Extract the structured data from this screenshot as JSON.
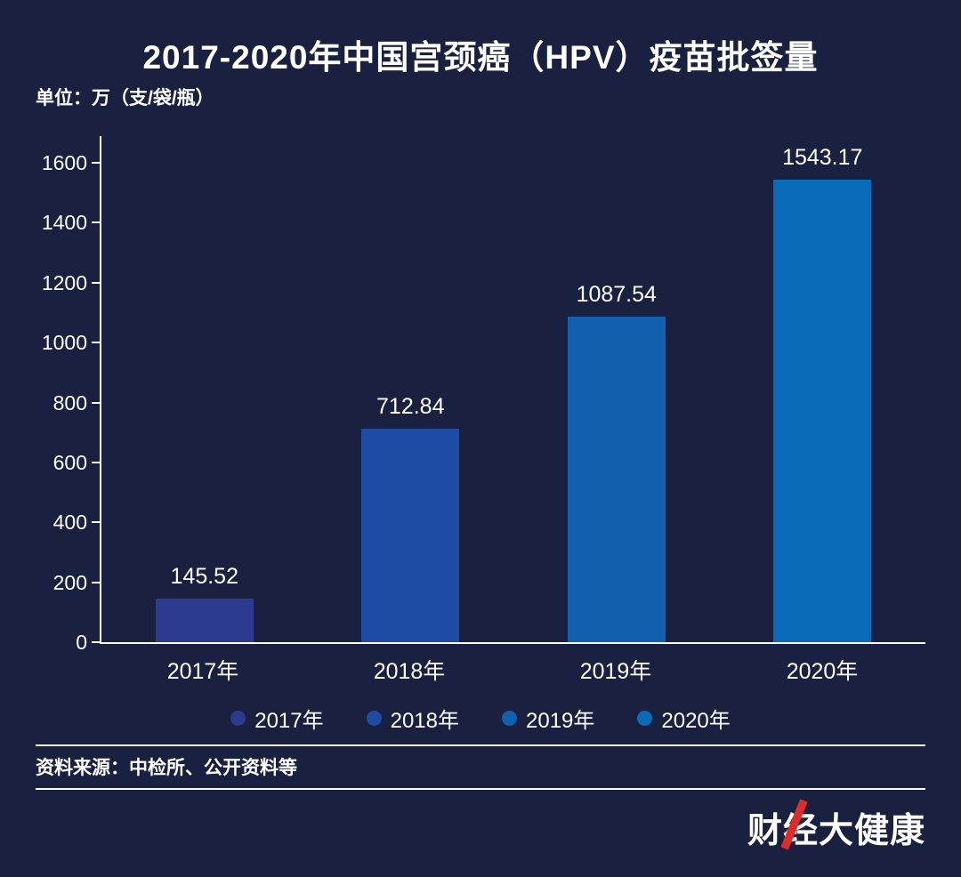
{
  "title": "2017-2020年中国宫颈癌（HPV）疫苗批签量",
  "unit_label": "单位：万（支/袋/瓶）",
  "chart_data": {
    "type": "bar",
    "categories": [
      "2017年",
      "2018年",
      "2019年",
      "2020年"
    ],
    "values": [
      145.52,
      712.84,
      1087.54,
      1543.17
    ],
    "value_labels": [
      "145.52",
      "712.84",
      "1087.54",
      "1543.17"
    ],
    "bar_colors": [
      "#2c3b90",
      "#1e4ca4",
      "#1160ad",
      "#0a6cb8"
    ],
    "title": "2017-2020年中国宫颈癌（HPV）疫苗批签量",
    "xlabel": "",
    "ylabel": "单位：万（支/袋/瓶）",
    "ylim": [
      0,
      1600
    ],
    "yticks": [
      0,
      200,
      400,
      600,
      800,
      1000,
      1200,
      1400,
      1600
    ],
    "grid": false,
    "legend": [
      "2017年",
      "2018年",
      "2019年",
      "2020年"
    ],
    "legend_position": "bottom"
  },
  "source": "资料来源：中检所、公开资料等",
  "logo": {
    "text": "财经大健康",
    "accent_color": "#e02b2b"
  },
  "colors": {
    "background": "#1a2040",
    "text": "#ffffff",
    "axis": "#ffffff"
  }
}
